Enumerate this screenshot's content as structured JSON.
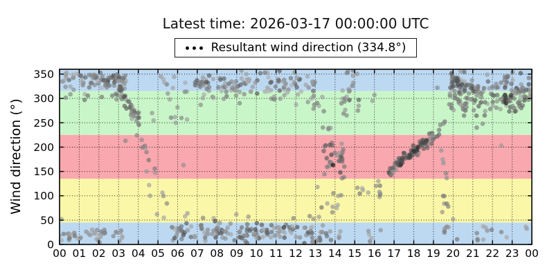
{
  "title": "Latest time: 2026-03-17 00:00:00 UTC",
  "legend": {
    "label": "Resultant wind direction (334.8°)",
    "marker_color": "#111111"
  },
  "chart_data": {
    "type": "scatter",
    "title": "Latest time: 2026-03-17 00:00:00 UTC",
    "legend_label": "Resultant wind direction (334.8°)",
    "resultant_wind_direction_deg": 334.8,
    "latest_time_utc": "2026-03-17 00:00:00 UTC",
    "xlabel": "",
    "ylabel": "Wind direction (°)",
    "xlim_hours": [
      0,
      24
    ],
    "ylim": [
      0,
      360
    ],
    "x_tick_labels": [
      "00",
      "01",
      "02",
      "03",
      "04",
      "05",
      "06",
      "07",
      "08",
      "09",
      "10",
      "11",
      "12",
      "13",
      "14",
      "15",
      "16",
      "17",
      "18",
      "19",
      "20",
      "21",
      "22",
      "23",
      "00"
    ],
    "y_ticks": [
      0,
      50,
      100,
      150,
      200,
      250,
      300,
      350
    ],
    "grid": "dotted",
    "grid_color": "#000000",
    "frame_color": "#000000",
    "bands": [
      {
        "from": 315,
        "to": 360,
        "color": "#bdd9f2"
      },
      {
        "from": 225,
        "to": 315,
        "color": "#c9f6c9"
      },
      {
        "from": 135,
        "to": 225,
        "color": "#f8a8ae"
      },
      {
        "from": 45,
        "to": 135,
        "color": "#faf7a8"
      },
      {
        "from": 0,
        "to": 45,
        "color": "#bdd9f2"
      }
    ],
    "point_style": {
      "radius": 3.3,
      "opacity": 0.65
    },
    "clusters": [
      {
        "name": "night-north-top",
        "n": 55,
        "t": [
          0.0,
          3.4
        ],
        "deg": [
          316,
          362
        ],
        "shade": [
          95,
          175
        ]
      },
      {
        "name": "night-north-top-dense",
        "n": 22,
        "t": [
          2.2,
          3.4
        ],
        "deg": [
          318,
          358
        ],
        "shade": [
          70,
          140
        ]
      },
      {
        "name": "night-north-green-tail",
        "n": 13,
        "t": [
          0.0,
          3.3
        ],
        "deg": [
          293,
          320
        ],
        "shade": [
          100,
          170
        ]
      },
      {
        "name": "night-north-bottom",
        "n": 42,
        "t": [
          0.0,
          3.2
        ],
        "deg": [
          0,
          38
        ],
        "shade": [
          100,
          175
        ]
      },
      {
        "name": "morning-veer-west",
        "n": 38,
        "t": [
          2.9,
          4.05
        ],
        "deg": [
          334,
          247
        ],
        "trend": true,
        "jitter": 17,
        "shade": [
          80,
          160
        ]
      },
      {
        "name": "morning-veer-south-east",
        "n": 12,
        "t": [
          3.9,
          5.75
        ],
        "deg": [
          237,
          58
        ],
        "trend": true,
        "jitter": 24,
        "shade": [
          110,
          170
        ]
      },
      {
        "name": "predawn-sparse-nw",
        "n": 8,
        "t": [
          4.9,
          6.5
        ],
        "deg": [
          288,
          356
        ],
        "shade": [
          110,
          170
        ]
      },
      {
        "name": "predawn-sparse-w",
        "n": 5,
        "t": [
          5.5,
          6.5
        ],
        "deg": [
          245,
          300
        ],
        "shade": [
          110,
          170
        ]
      },
      {
        "name": "day-north-bottom",
        "n": 130,
        "t": [
          5.7,
          13.4
        ],
        "deg": [
          0,
          48
        ],
        "shade": [
          70,
          175
        ]
      },
      {
        "name": "day-north-bottom-fringe",
        "n": 8,
        "t": [
          5.9,
          13.2
        ],
        "deg": [
          48,
          66
        ],
        "shade": [
          120,
          170
        ]
      },
      {
        "name": "day-north-top",
        "n": 100,
        "t": [
          6.85,
          13.05
        ],
        "deg": [
          303,
          362
        ],
        "shade": [
          80,
          175
        ]
      },
      {
        "name": "day-north-top-green-tail",
        "n": 20,
        "t": [
          6.9,
          13.05
        ],
        "deg": [
          283,
          318
        ],
        "shade": [
          100,
          170
        ]
      },
      {
        "name": "midday-west-sparse",
        "n": 8,
        "t": [
          12.8,
          13.55
        ],
        "deg": [
          258,
          316
        ],
        "shade": [
          110,
          170
        ]
      },
      {
        "name": "afternoon-south-strand",
        "n": 30,
        "t": [
          13.4,
          14.5
        ],
        "deg": [
          132,
          222
        ],
        "shade": [
          60,
          150
        ]
      },
      {
        "name": "afternoon-strand-upper",
        "n": 4,
        "t": [
          13.35,
          13.8
        ],
        "deg": [
          224,
          250
        ],
        "shade": [
          110,
          160
        ]
      },
      {
        "name": "afternoon-east-sparse",
        "n": 9,
        "t": [
          13.3,
          14.4
        ],
        "deg": [
          58,
          110
        ],
        "shade": [
          110,
          170
        ]
      },
      {
        "name": "afternoon-north-sparse",
        "n": 7,
        "t": [
          13.45,
          14.35
        ],
        "deg": [
          0,
          35
        ],
        "shade": [
          100,
          170
        ]
      },
      {
        "name": "afternoon-nw-strand",
        "n": 20,
        "t": [
          14.2,
          15.25
        ],
        "deg": [
          252,
          342
        ],
        "shade": [
          90,
          165
        ]
      },
      {
        "name": "afternoon-nw-top",
        "n": 5,
        "t": [
          14.5,
          15.35
        ],
        "deg": [
          344,
          358
        ],
        "shade": [
          110,
          160
        ]
      },
      {
        "name": "late-afternoon-east",
        "n": 11,
        "t": [
          14.9,
          16.35
        ],
        "deg": [
          76,
          128
        ],
        "shade": [
          110,
          170
        ]
      },
      {
        "name": "late-afternoon-north",
        "n": 5,
        "t": [
          15.6,
          16.45
        ],
        "deg": [
          2,
          42
        ],
        "shade": [
          110,
          170
        ]
      },
      {
        "name": "evening-south-rise",
        "n": 68,
        "t": [
          16.55,
          19.35
        ],
        "deg": [
          150,
          232
        ],
        "trend": true,
        "jitter": 14,
        "shade": [
          70,
          150
        ]
      },
      {
        "name": "evening-south-dark-core",
        "n": 24,
        "t": [
          17.2,
          18.65
        ],
        "deg": [
          168,
          208
        ],
        "trend": true,
        "jitter": 8,
        "shade": [
          35,
          90
        ]
      },
      {
        "name": "evening-transition-down",
        "n": 6,
        "t": [
          19.35,
          19.7
        ],
        "deg": [
          200,
          128
        ],
        "trend": true,
        "jitter": 10,
        "shade": [
          100,
          160
        ]
      },
      {
        "name": "evening-transition-east",
        "n": 6,
        "t": [
          19.45,
          19.75
        ],
        "deg": [
          58,
          118
        ],
        "shade": [
          110,
          160
        ]
      },
      {
        "name": "evening-transition-west",
        "n": 4,
        "t": [
          19.35,
          19.6
        ],
        "deg": [
          238,
          262
        ],
        "shade": [
          100,
          150
        ]
      },
      {
        "name": "evening-transition-north",
        "n": 5,
        "t": [
          19.3,
          19.8
        ],
        "deg": [
          8,
          50
        ],
        "shade": [
          110,
          165
        ]
      },
      {
        "name": "night-nw-dense",
        "n": 80,
        "t": [
          19.8,
          21.45
        ],
        "deg": [
          252,
          362
        ],
        "shade": [
          80,
          170
        ]
      },
      {
        "name": "night-nw-dense-dark",
        "n": 14,
        "t": [
          19.85,
          20.6
        ],
        "deg": [
          310,
          358
        ],
        "shade": [
          50,
          110
        ]
      },
      {
        "name": "night-nw-moderate",
        "n": 26,
        "t": [
          21.45,
          22.6
        ],
        "deg": [
          255,
          352
        ],
        "shade": [
          90,
          165
        ]
      },
      {
        "name": "late-night-nw-dense",
        "n": 60,
        "t": [
          22.6,
          24.0
        ],
        "deg": [
          262,
          362
        ],
        "shade": [
          70,
          165
        ]
      },
      {
        "name": "late-night-dark-blob",
        "n": 10,
        "t": [
          22.55,
          22.95
        ],
        "deg": [
          288,
          318
        ],
        "shade": [
          40,
          100
        ]
      },
      {
        "name": "late-night-north-sparse",
        "n": 13,
        "t": [
          19.9,
          23.9
        ],
        "deg": [
          2,
          45
        ],
        "shade": [
          110,
          170
        ]
      }
    ],
    "extra_points": [
      [
        0.1,
        52,
        150
      ],
      [
        3.35,
        213,
        130
      ],
      [
        4.42,
        150,
        150
      ],
      [
        4.55,
        122,
        160
      ],
      [
        4.6,
        100,
        150
      ],
      [
        4.7,
        270,
        140
      ],
      [
        4.78,
        255,
        150
      ],
      [
        4.95,
        62,
        150
      ],
      [
        5.15,
        345,
        150
      ],
      [
        5.3,
        55,
        160
      ],
      [
        5.5,
        310,
        140
      ],
      [
        5.6,
        298,
        150
      ],
      [
        5.9,
        250,
        150
      ],
      [
        6.3,
        163,
        140
      ],
      [
        6.5,
        64,
        150
      ],
      [
        7.9,
        48,
        60
      ],
      [
        9.6,
        57,
        140
      ],
      [
        11.4,
        35,
        40
      ],
      [
        13.1,
        118,
        150
      ],
      [
        13.9,
        163,
        15
      ],
      [
        15.9,
        295,
        150
      ],
      [
        16.0,
        307,
        140
      ],
      [
        16.2,
        130,
        150
      ],
      [
        19.2,
        322,
        130
      ],
      [
        20.0,
        52,
        150
      ],
      [
        21.2,
        240,
        120
      ],
      [
        21.5,
        248,
        130
      ],
      [
        22.45,
        203,
        150
      ]
    ]
  }
}
